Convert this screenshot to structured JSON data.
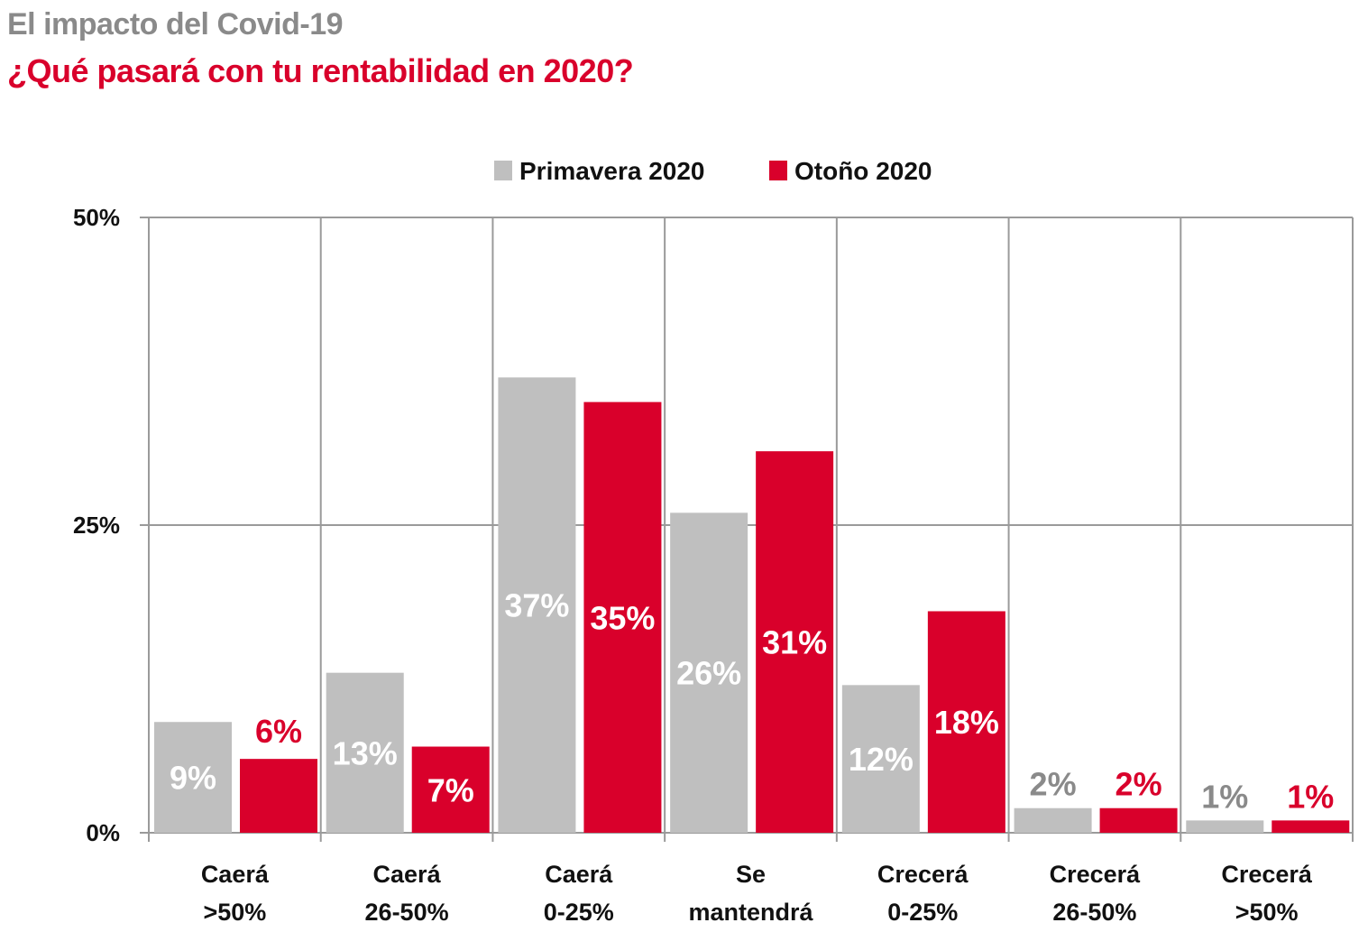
{
  "header": {
    "title": "El impacto del Covid-19",
    "subtitle": "¿Qué pasará con tu rentabilidad en 2020?"
  },
  "colors": {
    "title": "#8a8a8a",
    "subtitle": "#d9002b",
    "series_primavera": "#bfbfbf",
    "series_otono": "#d9002b",
    "grid": "#9a9a9a",
    "label_inside": "#ffffff",
    "label_primavera_outside": "#8a8a8a",
    "label_otono_outside": "#d9002b"
  },
  "chart_data": {
    "type": "bar",
    "title": "¿Qué pasará con tu rentabilidad en 2020?",
    "xlabel": "",
    "ylabel": "",
    "ylim": [
      0,
      50
    ],
    "yticks": [
      0,
      25,
      50
    ],
    "ytick_labels": [
      "0%",
      "25%",
      "50%"
    ],
    "grid": true,
    "legend_position": "top-center",
    "categories": [
      [
        "Caerá",
        ">50%"
      ],
      [
        "Caerá",
        "26-50%"
      ],
      [
        "Caerá",
        "0-25%"
      ],
      [
        "Se",
        "mantendrá"
      ],
      [
        "Crecerá",
        "0-25%"
      ],
      [
        "Crecerá",
        "26-50%"
      ],
      [
        "Crecerá",
        ">50%"
      ]
    ],
    "series": [
      {
        "name": "Primavera 2020",
        "values": [
          9,
          13,
          37,
          26,
          12,
          2,
          1
        ],
        "labels": [
          "9%",
          "13%",
          "37%",
          "26%",
          "12%",
          "2%",
          "1%"
        ]
      },
      {
        "name": "Otoño 2020",
        "values": [
          6,
          7,
          35,
          31,
          18,
          2,
          1
        ],
        "labels": [
          "6%",
          "7%",
          "35%",
          "31%",
          "18%",
          "2%",
          "1%"
        ]
      }
    ]
  }
}
